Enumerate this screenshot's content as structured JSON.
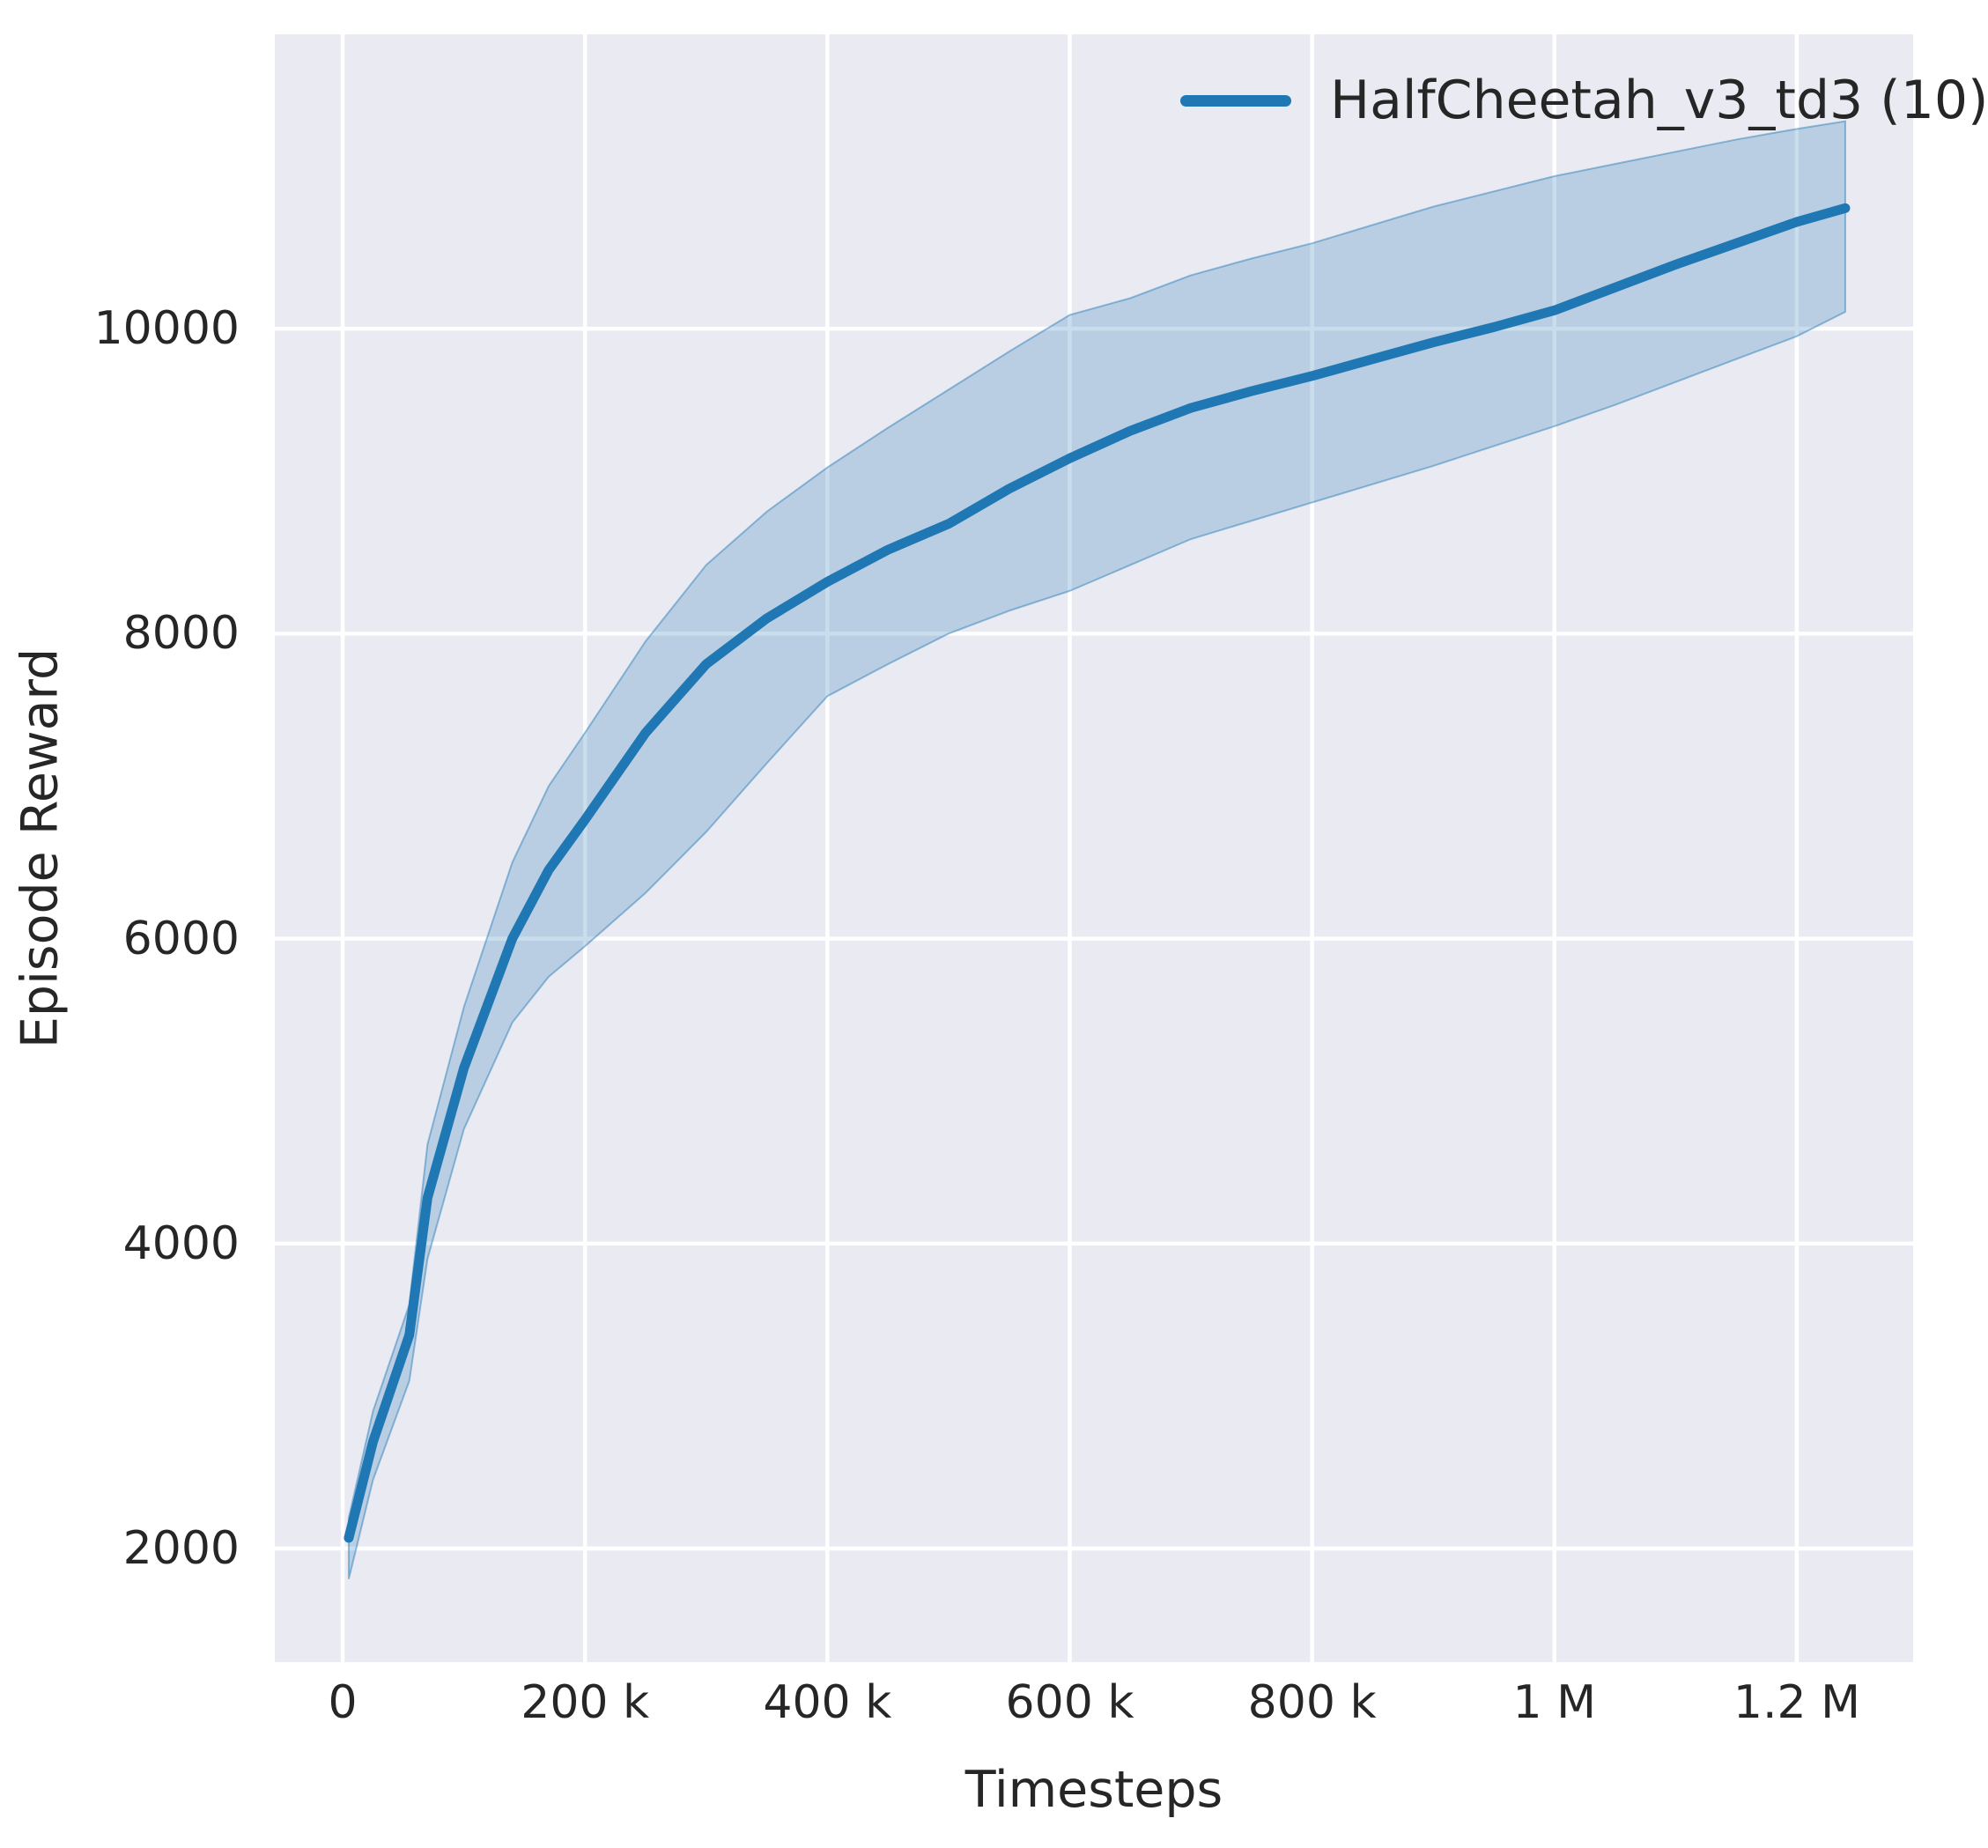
{
  "colors": {
    "line": "#1f77b4",
    "band_fill": "#1f77b4",
    "band_fill_opacity": 0.24,
    "band_edge": "rgba(31,119,180,0.45)",
    "plot_background": "#eaeaf2",
    "grid": "#ffffff",
    "text": "#262626",
    "figure_background": "#ffffff"
  },
  "axes": {
    "xlabel": "Timesteps",
    "ylabel": "Episode Reward"
  },
  "chart_data": {
    "type": "line",
    "title": "",
    "xlabel": "Timesteps",
    "ylabel": "Episode Reward",
    "grid": true,
    "legend_position": "upper right",
    "xlim": [
      -56000,
      1296000
    ],
    "ylim": [
      1255,
      11930
    ],
    "x_ticks": [
      {
        "value": 0,
        "label": "0"
      },
      {
        "value": 200000,
        "label": "200 k"
      },
      {
        "value": 400000,
        "label": "400 k"
      },
      {
        "value": 600000,
        "label": "600 k"
      },
      {
        "value": 800000,
        "label": "800 k"
      },
      {
        "value": 1000000,
        "label": "1 M"
      },
      {
        "value": 1200000,
        "label": "1.2 M"
      }
    ],
    "y_ticks": [
      {
        "value": 2000,
        "label": "2000"
      },
      {
        "value": 4000,
        "label": "4000"
      },
      {
        "value": 6000,
        "label": "6000"
      },
      {
        "value": 8000,
        "label": "8000"
      },
      {
        "value": 10000,
        "label": "10000"
      }
    ],
    "series": [
      {
        "name": "HalfCheetah_v3_td3 (10)",
        "color": "#1f77b4",
        "x": [
          5000,
          25000,
          55000,
          70000,
          100000,
          140000,
          170000,
          200000,
          250000,
          300000,
          350000,
          400000,
          450000,
          500000,
          550000,
          600000,
          650000,
          700000,
          750000,
          800000,
          850000,
          900000,
          950000,
          1000000,
          1050000,
          1100000,
          1150000,
          1200000,
          1240000
        ],
        "mean": [
          2070,
          2700,
          3400,
          4300,
          5150,
          6000,
          6450,
          6780,
          7350,
          7800,
          8100,
          8340,
          8550,
          8720,
          8950,
          9150,
          9330,
          9480,
          9590,
          9690,
          9800,
          9910,
          10010,
          10120,
          10270,
          10420,
          10560,
          10700,
          10790
        ],
        "lower": [
          1800,
          2450,
          3100,
          3900,
          4750,
          5450,
          5750,
          5950,
          6300,
          6700,
          7150,
          7590,
          7800,
          8000,
          8150,
          8280,
          8450,
          8620,
          8740,
          8860,
          8980,
          9100,
          9230,
          9360,
          9500,
          9650,
          9800,
          9950,
          10110
        ],
        "upper": [
          2200,
          2900,
          3600,
          4650,
          5550,
          6500,
          7000,
          7350,
          7950,
          8450,
          8800,
          9090,
          9350,
          9600,
          9850,
          10090,
          10200,
          10350,
          10460,
          10560,
          10680,
          10800,
          10900,
          11000,
          11080,
          11160,
          11240,
          11310,
          11360
        ]
      }
    ]
  }
}
